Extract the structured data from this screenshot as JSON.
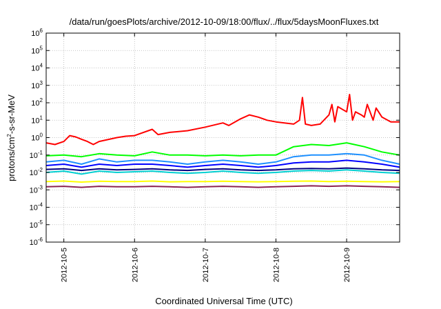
{
  "chart_data": {
    "type": "line",
    "title": "/data/run/goesPlots/archive/2012-10-09/18:00/flux/../flux/5daysMoonFluxes.txt",
    "xlabel": "Coordinated Universal Time (UTC)",
    "ylabel": {
      "prefix": "protons/cm",
      "exponent": "2",
      "suffix": "-s-sr-MeV"
    },
    "yscale": "log",
    "ylim": [
      1e-06,
      1000000.0
    ],
    "y_ticks": [
      {
        "value": 1e-06,
        "base": "10",
        "exp": "-6"
      },
      {
        "value": 1e-05,
        "base": "10",
        "exp": "-5"
      },
      {
        "value": 0.0001,
        "base": "10",
        "exp": "-4"
      },
      {
        "value": 0.001,
        "base": "10",
        "exp": "-3"
      },
      {
        "value": 0.01,
        "base": "10",
        "exp": "-2"
      },
      {
        "value": 0.1,
        "base": "10",
        "exp": "-1"
      },
      {
        "value": 1,
        "base": "10",
        "exp": "0"
      },
      {
        "value": 10,
        "base": "10",
        "exp": "1"
      },
      {
        "value": 100,
        "base": "10",
        "exp": "2"
      },
      {
        "value": 1000,
        "base": "10",
        "exp": "3"
      },
      {
        "value": 10000,
        "base": "10",
        "exp": "4"
      },
      {
        "value": 100000,
        "base": "10",
        "exp": "5"
      },
      {
        "value": 1000000,
        "base": "10",
        "exp": "6"
      }
    ],
    "xlim": [
      "2012-10-04 18:00",
      "2012-10-09 18:00"
    ],
    "x_ticks": [
      "2012-10-5",
      "2012-10-6",
      "2012-10-7",
      "2012-10-8",
      "2012-10-9"
    ],
    "x_tick_dates": [
      "2012-10-05 00:00",
      "2012-10-06 00:00",
      "2012-10-07 00:00",
      "2012-10-08 00:00",
      "2012-10-09 00:00"
    ],
    "grid": true,
    "series": [
      {
        "color": "#ff0000",
        "x": [
          "2012-10-04 18:00",
          "2012-10-04 21:00",
          "2012-10-05 00:00",
          "2012-10-05 02:00",
          "2012-10-05 04:00",
          "2012-10-05 06:00",
          "2012-10-05 08:00",
          "2012-10-05 10:00",
          "2012-10-05 12:00",
          "2012-10-05 18:00",
          "2012-10-05 21:00",
          "2012-10-06 00:00",
          "2012-10-06 06:00",
          "2012-10-06 08:00",
          "2012-10-06 12:00",
          "2012-10-06 18:00",
          "2012-10-07 00:00",
          "2012-10-07 06:00",
          "2012-10-07 08:00",
          "2012-10-07 12:00",
          "2012-10-07 15:00",
          "2012-10-07 18:00",
          "2012-10-07 21:00",
          "2012-10-08 00:00",
          "2012-10-08 06:00",
          "2012-10-08 08:00",
          "2012-10-08 09:00",
          "2012-10-08 10:00",
          "2012-10-08 12:00",
          "2012-10-08 15:00",
          "2012-10-08 18:00",
          "2012-10-08 19:00",
          "2012-10-08 20:00",
          "2012-10-08 21:00",
          "2012-10-09 00:00",
          "2012-10-09 01:00",
          "2012-10-09 02:00",
          "2012-10-09 03:00",
          "2012-10-09 05:00",
          "2012-10-09 06:00",
          "2012-10-09 07:00",
          "2012-10-09 09:00",
          "2012-10-09 10:00",
          "2012-10-09 12:00",
          "2012-10-09 15:00",
          "2012-10-09 18:00"
        ],
        "values": [
          0.5,
          0.4,
          0.6,
          1.3,
          1.1,
          0.8,
          0.6,
          0.4,
          0.6,
          1.0,
          1.2,
          1.3,
          3.0,
          1.5,
          2.0,
          2.5,
          4.0,
          7.0,
          5.0,
          12,
          20,
          15,
          10,
          8,
          6,
          10,
          200,
          6,
          5,
          6,
          20,
          80,
          8,
          60,
          30,
          300,
          10,
          30,
          20,
          15,
          80,
          10,
          50,
          15,
          8,
          8
        ]
      },
      {
        "color": "#00ff00",
        "x": [
          "2012-10-04 18:00",
          "2012-10-05 00:00",
          "2012-10-05 06:00",
          "2012-10-05 12:00",
          "2012-10-05 18:00",
          "2012-10-06 00:00",
          "2012-10-06 06:00",
          "2012-10-06 12:00",
          "2012-10-06 18:00",
          "2012-10-07 00:00",
          "2012-10-07 06:00",
          "2012-10-07 12:00",
          "2012-10-07 18:00",
          "2012-10-08 00:00",
          "2012-10-08 06:00",
          "2012-10-08 12:00",
          "2012-10-08 18:00",
          "2012-10-09 00:00",
          "2012-10-09 06:00",
          "2012-10-09 12:00",
          "2012-10-09 18:00"
        ],
        "values": [
          0.09,
          0.1,
          0.08,
          0.12,
          0.1,
          0.09,
          0.15,
          0.1,
          0.1,
          0.09,
          0.1,
          0.09,
          0.1,
          0.1,
          0.3,
          0.4,
          0.35,
          0.5,
          0.3,
          0.15,
          0.1
        ]
      },
      {
        "color": "#1e90ff",
        "x": [
          "2012-10-04 18:00",
          "2012-10-05 00:00",
          "2012-10-05 06:00",
          "2012-10-05 12:00",
          "2012-10-05 18:00",
          "2012-10-06 00:00",
          "2012-10-06 06:00",
          "2012-10-06 12:00",
          "2012-10-06 18:00",
          "2012-10-07 00:00",
          "2012-10-07 06:00",
          "2012-10-07 12:00",
          "2012-10-07 18:00",
          "2012-10-08 00:00",
          "2012-10-08 06:00",
          "2012-10-08 12:00",
          "2012-10-08 18:00",
          "2012-10-09 00:00",
          "2012-10-09 06:00",
          "2012-10-09 12:00",
          "2012-10-09 18:00"
        ],
        "values": [
          0.04,
          0.05,
          0.03,
          0.06,
          0.04,
          0.05,
          0.05,
          0.04,
          0.03,
          0.04,
          0.05,
          0.04,
          0.03,
          0.04,
          0.08,
          0.1,
          0.1,
          0.12,
          0.1,
          0.05,
          0.03
        ]
      },
      {
        "color": "#0000ff",
        "x": [
          "2012-10-04 18:00",
          "2012-10-05 00:00",
          "2012-10-05 06:00",
          "2012-10-05 12:00",
          "2012-10-05 18:00",
          "2012-10-06 00:00",
          "2012-10-06 06:00",
          "2012-10-06 12:00",
          "2012-10-06 18:00",
          "2012-10-07 00:00",
          "2012-10-07 06:00",
          "2012-10-07 12:00",
          "2012-10-07 18:00",
          "2012-10-08 00:00",
          "2012-10-08 06:00",
          "2012-10-08 12:00",
          "2012-10-08 18:00",
          "2012-10-09 00:00",
          "2012-10-09 06:00",
          "2012-10-09 12:00",
          "2012-10-09 18:00"
        ],
        "values": [
          0.025,
          0.03,
          0.02,
          0.03,
          0.025,
          0.03,
          0.03,
          0.025,
          0.02,
          0.025,
          0.03,
          0.025,
          0.02,
          0.025,
          0.035,
          0.04,
          0.04,
          0.05,
          0.04,
          0.03,
          0.02
        ]
      },
      {
        "color": "#00ced1",
        "x": [
          "2012-10-04 18:00",
          "2012-10-05 00:00",
          "2012-10-05 06:00",
          "2012-10-05 12:00",
          "2012-10-05 18:00",
          "2012-10-06 00:00",
          "2012-10-06 06:00",
          "2012-10-06 12:00",
          "2012-10-06 18:00",
          "2012-10-07 00:00",
          "2012-10-07 06:00",
          "2012-10-07 12:00",
          "2012-10-07 18:00",
          "2012-10-08 00:00",
          "2012-10-08 06:00",
          "2012-10-08 12:00",
          "2012-10-08 18:00",
          "2012-10-09 00:00",
          "2012-10-09 06:00",
          "2012-10-09 12:00",
          "2012-10-09 18:00"
        ],
        "values": [
          0.01,
          0.012,
          0.008,
          0.012,
          0.01,
          0.011,
          0.012,
          0.01,
          0.009,
          0.01,
          0.012,
          0.01,
          0.009,
          0.01,
          0.012,
          0.013,
          0.012,
          0.014,
          0.012,
          0.01,
          0.009
        ]
      },
      {
        "color": "#000080",
        "x": [
          "2012-10-04 18:00",
          "2012-10-05 00:00",
          "2012-10-05 06:00",
          "2012-10-05 12:00",
          "2012-10-05 18:00",
          "2012-10-06 00:00",
          "2012-10-06 06:00",
          "2012-10-06 12:00",
          "2012-10-06 18:00",
          "2012-10-07 00:00",
          "2012-10-07 06:00",
          "2012-10-07 12:00",
          "2012-10-07 18:00",
          "2012-10-08 00:00",
          "2012-10-08 06:00",
          "2012-10-08 12:00",
          "2012-10-08 18:00",
          "2012-10-09 00:00",
          "2012-10-09 06:00",
          "2012-10-09 12:00",
          "2012-10-09 18:00"
        ],
        "values": [
          0.015,
          0.016,
          0.013,
          0.016,
          0.014,
          0.015,
          0.016,
          0.014,
          0.013,
          0.015,
          0.016,
          0.014,
          0.013,
          0.014,
          0.016,
          0.017,
          0.016,
          0.018,
          0.016,
          0.014,
          0.013
        ]
      },
      {
        "color": "#ffff00",
        "x": [
          "2012-10-04 18:00",
          "2012-10-05 00:00",
          "2012-10-05 06:00",
          "2012-10-05 12:00",
          "2012-10-05 18:00",
          "2012-10-06 00:00",
          "2012-10-06 06:00",
          "2012-10-06 12:00",
          "2012-10-06 18:00",
          "2012-10-07 00:00",
          "2012-10-07 06:00",
          "2012-10-07 12:00",
          "2012-10-07 18:00",
          "2012-10-08 00:00",
          "2012-10-08 06:00",
          "2012-10-08 12:00",
          "2012-10-08 18:00",
          "2012-10-09 00:00",
          "2012-10-09 06:00",
          "2012-10-09 12:00",
          "2012-10-09 18:00"
        ],
        "values": [
          0.003,
          0.0032,
          0.0028,
          0.0031,
          0.003,
          0.003,
          0.0032,
          0.0029,
          0.003,
          0.003,
          0.0031,
          0.003,
          0.0029,
          0.003,
          0.0031,
          0.0032,
          0.003,
          0.0031,
          0.003,
          0.0029,
          0.003
        ]
      },
      {
        "color": "#8b2252",
        "x": [
          "2012-10-04 18:00",
          "2012-10-05 00:00",
          "2012-10-05 06:00",
          "2012-10-05 12:00",
          "2012-10-05 18:00",
          "2012-10-06 00:00",
          "2012-10-06 06:00",
          "2012-10-06 12:00",
          "2012-10-06 18:00",
          "2012-10-07 00:00",
          "2012-10-07 06:00",
          "2012-10-07 12:00",
          "2012-10-07 18:00",
          "2012-10-08 00:00",
          "2012-10-08 06:00",
          "2012-10-08 12:00",
          "2012-10-08 18:00",
          "2012-10-09 00:00",
          "2012-10-09 06:00",
          "2012-10-09 12:00",
          "2012-10-09 18:00"
        ],
        "values": [
          0.0015,
          0.0016,
          0.0014,
          0.0016,
          0.0015,
          0.0015,
          0.0016,
          0.0015,
          0.0014,
          0.0015,
          0.0016,
          0.0015,
          0.0014,
          0.0015,
          0.0016,
          0.0017,
          0.0016,
          0.0017,
          0.0016,
          0.0015,
          0.0014
        ]
      }
    ]
  }
}
